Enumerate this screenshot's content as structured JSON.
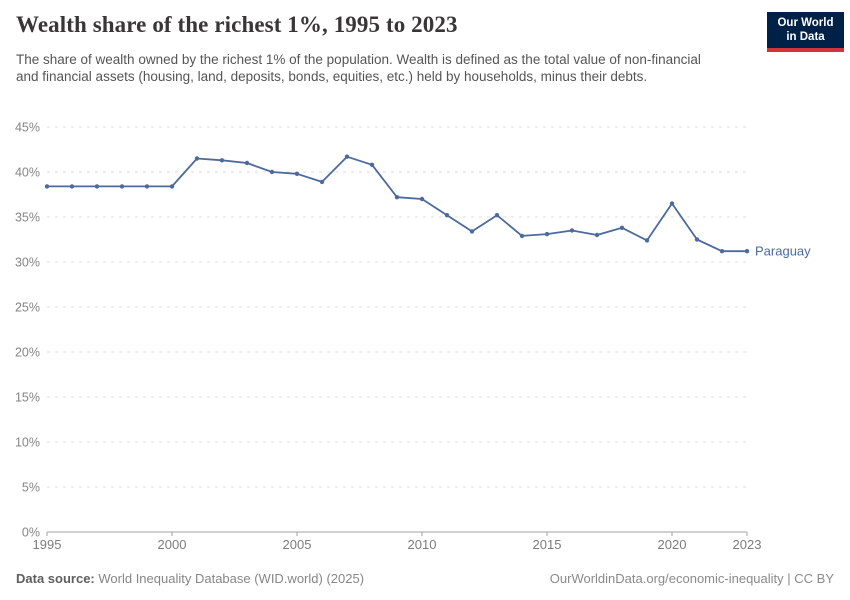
{
  "header": {
    "title": "Wealth share of the richest 1%, 1995 to 2023",
    "subtitle": "The share of wealth owned by the richest 1% of the population. Wealth is defined as the total value of non-financial and financial assets (housing, land, deposits, bonds, equities, etc.) held by households, minus their debts.",
    "logo_line1": "Our World",
    "logo_line2": "in Data"
  },
  "chart_data": {
    "type": "line",
    "title": "Wealth share of the richest 1%, 1995 to 2023",
    "xlabel": "",
    "ylabel": "",
    "xlim": [
      1995,
      2023
    ],
    "ylim": [
      0,
      45
    ],
    "yticks": [
      0,
      5,
      10,
      15,
      20,
      25,
      30,
      35,
      40,
      45
    ],
    "ytick_suffix": "%",
    "xticks": [
      1995,
      2000,
      2005,
      2010,
      2015,
      2020,
      2023
    ],
    "grid": "horizontal-dashed",
    "legend_position": "end-of-line-label",
    "series": [
      {
        "name": "Paraguay",
        "color": "#4c6a9c",
        "x": [
          1995,
          1996,
          1997,
          1998,
          1999,
          2000,
          2001,
          2002,
          2003,
          2004,
          2005,
          2006,
          2007,
          2008,
          2009,
          2010,
          2011,
          2012,
          2013,
          2014,
          2015,
          2016,
          2017,
          2018,
          2019,
          2020,
          2021,
          2022,
          2023
        ],
        "values": [
          38.4,
          38.4,
          38.4,
          38.4,
          38.4,
          38.4,
          41.5,
          41.3,
          41.0,
          40.0,
          39.8,
          38.9,
          41.7,
          40.8,
          37.2,
          37.0,
          35.2,
          33.4,
          35.2,
          32.9,
          33.1,
          33.5,
          33.0,
          33.8,
          32.4,
          36.5,
          32.5,
          31.2,
          31.2
        ]
      }
    ]
  },
  "footer": {
    "datasource_label": "Data source:",
    "datasource_value": "World Inequality Database (WID.world) (2025)",
    "url": "OurWorldinData.org/economic-inequality",
    "separator": " | ",
    "license": "CC BY"
  },
  "colors": {
    "accent": "#4c6a9c",
    "logo_bg": "#002147",
    "logo_stripe": "#d0353c",
    "gridline": "#dedede",
    "axis": "#a1a1a1"
  }
}
